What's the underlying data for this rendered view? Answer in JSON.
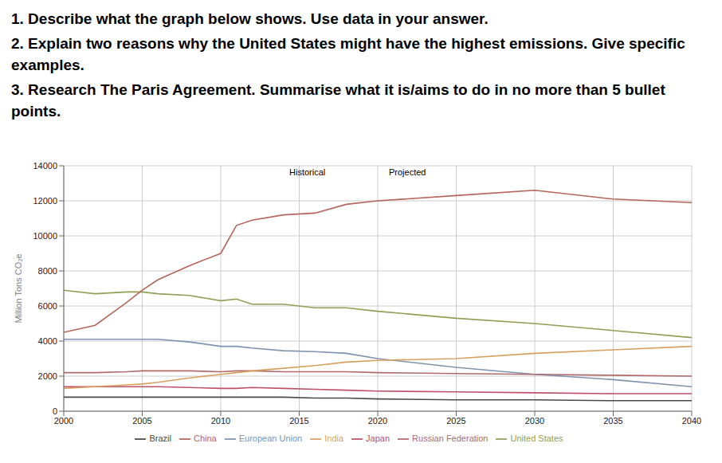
{
  "questions": [
    "1.  Describe what the graph below shows. Use data in your answer.",
    "2.  Explain two reasons why the United States might have the highest emissions. Give specific examples.",
    "3.  Research The Paris Agreement. Summarise what it is/aims to do in no more than 5 bullet points."
  ],
  "chart_data": {
    "type": "line",
    "y_label": "Million Tons CO₂e",
    "annotations": [
      "Historical",
      "Projected"
    ],
    "x": [
      2000,
      2002,
      2004,
      2005,
      2006,
      2008,
      2010,
      2011,
      2012,
      2014,
      2016,
      2018,
      2020,
      2025,
      2030,
      2035,
      2040
    ],
    "xlim": [
      2000,
      2040
    ],
    "xticks": [
      2000,
      2005,
      2010,
      2015,
      2020,
      2025,
      2030,
      2035,
      2040
    ],
    "ylim": [
      0,
      14000
    ],
    "yticks": [
      0,
      2000,
      4000,
      6000,
      8000,
      10000,
      12000,
      14000
    ],
    "grid": true,
    "legend": "bottom",
    "series": [
      {
        "name": "European Union",
        "color": "#7f93b0",
        "values": [
          4100,
          4100,
          4100,
          4100,
          4100,
          3950,
          3700,
          3700,
          3600,
          3450,
          3400,
          3300,
          3000,
          2500,
          2100,
          1800,
          1400
        ]
      },
      {
        "name": "United States",
        "color": "#8fa055",
        "values": [
          6900,
          6700,
          6800,
          6800,
          6700,
          6600,
          6300,
          6400,
          6100,
          6100,
          5900,
          5900,
          5700,
          5300,
          5000,
          4600,
          4200
        ]
      },
      {
        "name": "Japan",
        "color": "#c0506a",
        "values": [
          1400,
          1400,
          1400,
          1400,
          1400,
          1350,
          1300,
          1300,
          1350,
          1300,
          1250,
          1200,
          1150,
          1100,
          1050,
          1000,
          1000
        ]
      },
      {
        "name": "Russian Federation",
        "color": "#b06a6a",
        "values": [
          2200,
          2200,
          2250,
          2300,
          2300,
          2300,
          2250,
          2300,
          2300,
          2250,
          2250,
          2250,
          2200,
          2150,
          2100,
          2050,
          2000
        ]
      },
      {
        "name": "Brazil",
        "color": "#4a4a4a",
        "values": [
          800,
          800,
          800,
          800,
          800,
          800,
          800,
          800,
          800,
          800,
          750,
          750,
          700,
          650,
          650,
          600,
          600
        ]
      },
      {
        "name": "India",
        "color": "#d8a060",
        "values": [
          1300,
          1400,
          1500,
          1550,
          1650,
          1900,
          2100,
          2200,
          2300,
          2450,
          2600,
          2800,
          2900,
          3000,
          3300,
          3500,
          3700
        ]
      },
      {
        "name": "China",
        "color": "#b5655a",
        "values": [
          4500,
          4900,
          6200,
          6900,
          7500,
          8300,
          9000,
          10600,
          10900,
          11200,
          11300,
          11800,
          12000,
          12300,
          12600,
          12100,
          11900
        ]
      }
    ]
  }
}
